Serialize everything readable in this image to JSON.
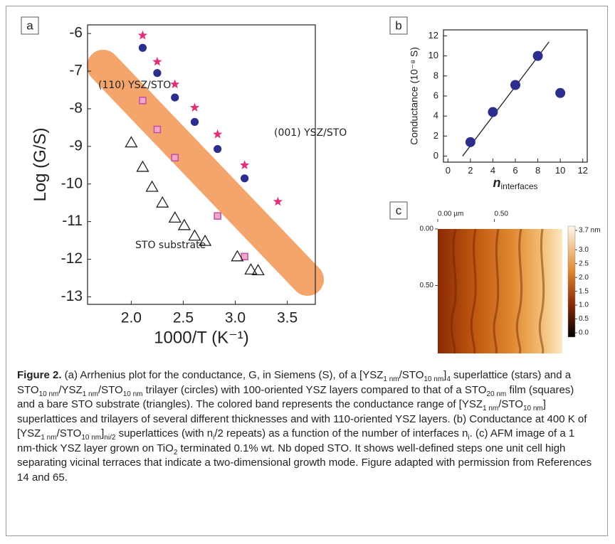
{
  "chart_data": [
    {
      "type": "scatter",
      "panel": "a",
      "y_label": "Log (G/S)",
      "x_label": "1000/T (K⁻¹)",
      "xlim": [
        1.58,
        3.77
      ],
      "ylim": [
        -13.2,
        -5.77
      ],
      "xticks": [
        {
          "value": 2,
          "label": "2.0"
        },
        2.5,
        {
          "value": 3,
          "label": "3.0"
        },
        3.5
      ],
      "yticks": [
        -6,
        -7,
        -8,
        -9,
        -10,
        -11,
        -12,
        -13
      ],
      "annotations": [
        "(110) YSZ/STO",
        "(001) YSZ/STO",
        "STO substrate"
      ],
      "series": [
        {
          "marker": "star",
          "color": "#e0307a",
          "x": [
            2.11,
            2.25,
            2.42,
            2.61,
            2.83,
            3.09,
            3.41
          ],
          "values": [
            -6.05,
            -6.75,
            -7.35,
            -7.97,
            -8.68,
            -9.5,
            -10.47
          ]
        },
        {
          "marker": "circle",
          "color": "#2b2e8c",
          "x": [
            2.11,
            2.25,
            2.42,
            2.61,
            2.83,
            3.09
          ],
          "values": [
            -6.38,
            -7.05,
            -7.7,
            -8.35,
            -9.07,
            -9.85
          ]
        },
        {
          "marker": "square",
          "color": "#c04fa0",
          "x": [
            2.11,
            2.25,
            2.42,
            2.83,
            3.09
          ],
          "values": [
            -7.78,
            -8.55,
            -9.3,
            -10.85,
            -11.93
          ]
        },
        {
          "marker": "triangle",
          "color": "#222222",
          "x": [
            2.0,
            2.11,
            2.2,
            2.3,
            2.42,
            2.51,
            2.61,
            2.71,
            3.02,
            3.15,
            3.22
          ],
          "values": [
            -8.9,
            -9.55,
            -10.08,
            -10.5,
            -10.9,
            -11.1,
            -11.38,
            -11.52,
            -11.93,
            -12.28,
            -12.3
          ]
        }
      ]
    },
    {
      "type": "scatter",
      "panel": "b",
      "y_label": "Conductance (10⁻⁸ S)",
      "x_label": "n",
      "x_label_sub": "interfaces",
      "xlim": [
        -0.4,
        12.4
      ],
      "ylim": [
        -0.6,
        12.6
      ],
      "xticks": [
        0,
        2,
        4,
        6,
        8,
        10,
        12
      ],
      "yticks": [
        0,
        2,
        4,
        6,
        8,
        10,
        12
      ],
      "series": [
        {
          "marker": "line",
          "color": "#222222",
          "x": [
            1.3,
            9
          ],
          "values": [
            0,
            11.4
          ]
        },
        {
          "marker": "circle",
          "color": "#2b2e8c",
          "x": [
            2,
            4,
            6,
            8,
            10
          ],
          "values": [
            1.4,
            4.4,
            7.1,
            10,
            6.3
          ]
        }
      ]
    },
    {
      "type": "image",
      "panel": "c",
      "xlim": [
        0,
        1.1
      ],
      "ylim": [
        0,
        1.1
      ],
      "xticks": [
        {
          "value": 0,
          "label": "0.00 µm"
        },
        {
          "value": 0.5,
          "label": "0.50"
        }
      ],
      "yticks": [
        {
          "value": 0,
          "label": "0.00"
        },
        {
          "value": 0.5,
          "label": "0.50"
        }
      ],
      "clim": [
        0,
        3.7
      ],
      "cticks": [
        {
          "value": 3.7,
          "label": "3.7 nm"
        },
        {
          "value": 3,
          "label": "3.0"
        },
        2.5,
        {
          "value": 2,
          "label": "2.0"
        },
        1.5,
        {
          "value": 1,
          "label": "1.0"
        },
        0.5,
        {
          "value": 0,
          "label": "0.0"
        }
      ]
    }
  ],
  "caption": [
    "Figure 2.",
    " (a) Arrhenius plot for the conductance, G, in Siemens (S), of a [YSZ",
    "1 nm",
    "/STO",
    "10 nm",
    "]",
    "4",
    " superlattice (stars) and a STO",
    "10 nm",
    "/YSZ",
    "1 nm",
    "/STO",
    "10 nm",
    " trilayer (circles) with 100-oriented YSZ layers compared to that of a STO",
    "20 nm",
    " film (squares) and a bare STO substrate (triangles). The colored band represents the conductance range of [YSZ",
    "1 nm",
    "/STO",
    "10 nm",
    "] superlattices and trilayers of several different thicknesses and with 110-oriented YSZ layers. (b) Conductance at 400 K of [YSZ",
    "1 nm",
    "/STO",
    "10 nm",
    "]",
    "ni/2",
    " superlattices (with n",
    "i",
    "/2 repeats) as a function of the number of interfaces n",
    "i",
    ". (c) AFM image of a 1 nm-thick YSZ layer grown on TiO",
    "2",
    " terminated 0.1% wt. Nb doped STO. It shows well-defined steps one unit cell high separating vicinal terraces that indicate a two-dimensional growth mode. Figure adapted with permission from References 14 and 65."
  ]
}
